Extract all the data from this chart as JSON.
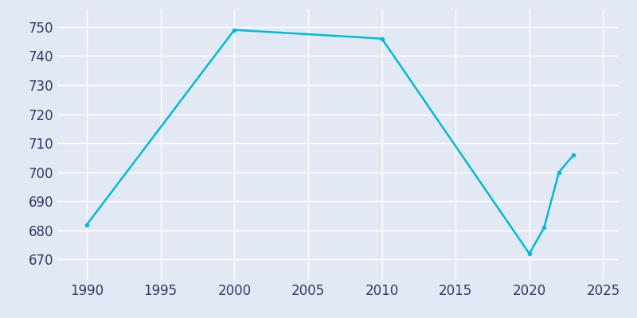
{
  "years": [
    1990,
    2000,
    2010,
    2020,
    2021,
    2022,
    2023
  ],
  "population": [
    682,
    749,
    746,
    672,
    681,
    700,
    706
  ],
  "line_color": "#00BCD4",
  "marker": "o",
  "marker_size": 4,
  "background_color": "#E3E9F4",
  "plot_bg_color": "#E3E9F4",
  "grid_color": "#FFFFFF",
  "tick_color": "#2D3A6B",
  "xlim": [
    1988,
    2026
  ],
  "ylim": [
    663,
    756
  ],
  "xticks": [
    1990,
    1995,
    2000,
    2005,
    2010,
    2015,
    2020,
    2025
  ],
  "yticks": [
    670,
    680,
    690,
    700,
    710,
    720,
    730,
    740,
    750
  ]
}
